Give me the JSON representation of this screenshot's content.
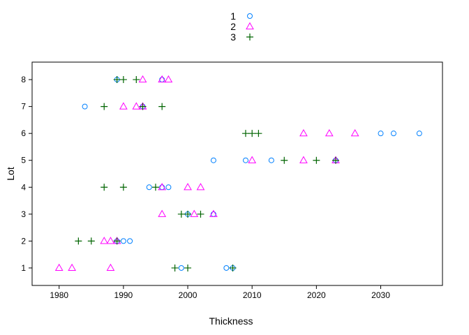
{
  "chart_data": {
    "type": "scatter",
    "xlabel": "Thickness",
    "ylabel": "Lot",
    "xlim": [
      1975.8,
      2039.6
    ],
    "ylim": [
      0.35,
      8.65
    ],
    "x_ticks": [
      1980,
      1990,
      2000,
      2010,
      2020,
      2030
    ],
    "y_ticks": [
      1,
      2,
      3,
      4,
      5,
      6,
      7,
      8
    ],
    "grid": false,
    "legend_position": "top-center",
    "series": [
      {
        "name": "1",
        "marker": "circle",
        "color": "#0080ff",
        "points": [
          [
            1999,
            1
          ],
          [
            2006,
            1
          ],
          [
            2007,
            1
          ],
          [
            1989,
            2
          ],
          [
            1990,
            2
          ],
          [
            1991,
            2
          ],
          [
            2000,
            3
          ],
          [
            2004,
            3
          ],
          [
            1994,
            4
          ],
          [
            1996,
            4
          ],
          [
            1997,
            4
          ],
          [
            2004,
            5
          ],
          [
            2009,
            5
          ],
          [
            2013,
            5
          ],
          [
            2023,
            5
          ],
          [
            2030,
            6
          ],
          [
            2032,
            6
          ],
          [
            2036,
            6
          ],
          [
            1984,
            7
          ],
          [
            1993,
            7
          ],
          [
            1989,
            8
          ],
          [
            1996,
            8
          ]
        ]
      },
      {
        "name": "2",
        "marker": "triangle",
        "color": "#ff00ff",
        "points": [
          [
            1980,
            1
          ],
          [
            1982,
            1
          ],
          [
            1988,
            1
          ],
          [
            1987,
            2
          ],
          [
            1988,
            2
          ],
          [
            1989,
            2
          ],
          [
            1996,
            3
          ],
          [
            2001,
            3
          ],
          [
            2004,
            3
          ],
          [
            1996,
            4
          ],
          [
            2000,
            4
          ],
          [
            2002,
            4
          ],
          [
            2010,
            5
          ],
          [
            2018,
            5
          ],
          [
            2023,
            5
          ],
          [
            2018,
            6
          ],
          [
            2022,
            6
          ],
          [
            2026,
            6
          ],
          [
            1990,
            7
          ],
          [
            1992,
            7
          ],
          [
            1993,
            7
          ],
          [
            1993,
            8
          ],
          [
            1996,
            8
          ],
          [
            1997,
            8
          ]
        ]
      },
      {
        "name": "3",
        "marker": "plus",
        "color": "#006400",
        "points": [
          [
            1998,
            1
          ],
          [
            2000,
            1
          ],
          [
            2007,
            1
          ],
          [
            1983,
            2
          ],
          [
            1985,
            2
          ],
          [
            1989,
            2
          ],
          [
            1999,
            3
          ],
          [
            2000,
            3
          ],
          [
            2002,
            3
          ],
          [
            1987,
            4
          ],
          [
            1990,
            4
          ],
          [
            1995,
            4
          ],
          [
            2015,
            5
          ],
          [
            2020,
            5
          ],
          [
            2023,
            5
          ],
          [
            2009,
            6
          ],
          [
            2010,
            6
          ],
          [
            2011,
            6
          ],
          [
            1987,
            7
          ],
          [
            1993,
            7
          ],
          [
            1996,
            7
          ],
          [
            1989,
            8
          ],
          [
            1990,
            8
          ],
          [
            1992,
            8
          ]
        ]
      }
    ]
  }
}
